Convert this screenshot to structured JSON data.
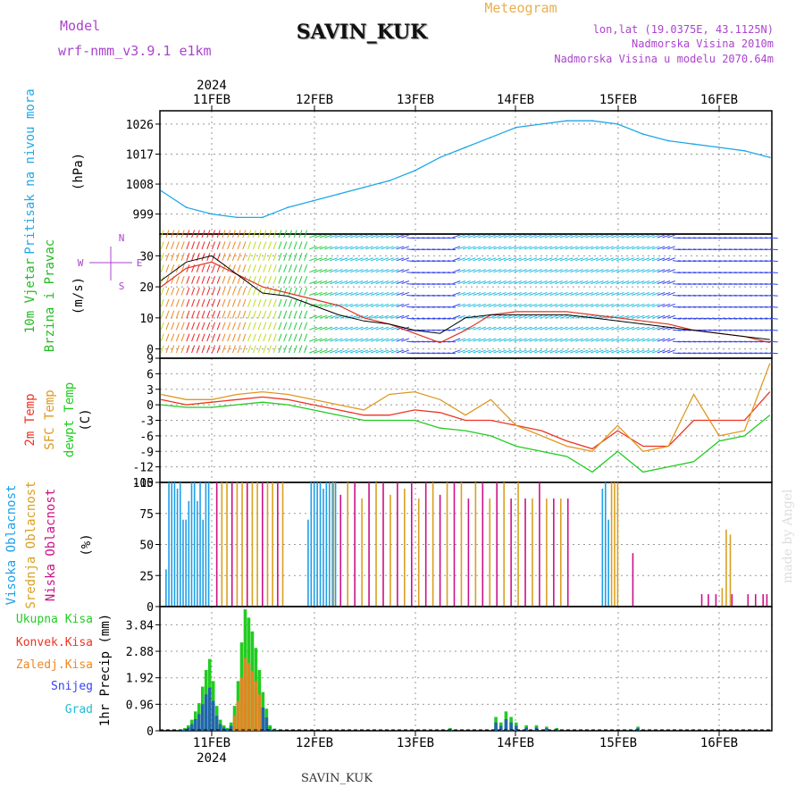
{
  "header": {
    "model_label": "Model",
    "model_name": "wrf-nmm_v3.9.1 e1km",
    "station": "SAVIN_KUK",
    "product": "Meteogram",
    "lonlat": "lon,lat (19.0375E, 43.1125N)",
    "elevation": "Nadmorska Visina 2010m",
    "model_elevation": "Nadmorska Visina u modelu 2070.64m",
    "watermark": "made by Angel",
    "footer_station": "SAVIN_KUK"
  },
  "time_axis": {
    "year": "2024",
    "labels": [
      "11FEB",
      "12FEB",
      "13FEB",
      "14FEB",
      "15FEB",
      "16FEB"
    ]
  },
  "colors": {
    "pressure": "#1fa8e8",
    "mixed_green": "#22bb22",
    "temp2m": "#ee3322",
    "sfc_temp": "#dd9922",
    "dewpt": "#22cc22",
    "high_cloud": "#1f9fe8",
    "mid_cloud": "#d9a020",
    "low_cloud": "#cc1188",
    "title_purple": "#aa44cc",
    "meteogram_orange": "#e8b050"
  },
  "chart_data": [
    {
      "type": "line",
      "name_label": "Pritisak na nivou mora",
      "unit_label": "(hPa)",
      "yticks": [
        "999",
        "1008",
        "1017",
        "1026"
      ],
      "ylim": [
        993,
        1030
      ],
      "x_days": [
        0.0,
        0.25,
        0.5,
        0.75,
        1.0,
        1.25,
        1.5,
        1.75,
        2.0,
        2.25,
        2.5,
        2.75,
        3.0,
        3.25,
        3.5,
        3.75,
        4.0,
        4.25,
        4.5,
        4.75,
        5.0,
        5.25,
        5.5,
        5.75,
        6.0
      ],
      "values": [
        1006,
        1001,
        999,
        998,
        998,
        1001,
        1003,
        1005,
        1007,
        1009,
        1012,
        1016,
        1019,
        1022,
        1025,
        1026,
        1027,
        1027,
        1026,
        1023,
        1021,
        1020,
        1019,
        1018,
        1016
      ]
    },
    {
      "type": "line",
      "name_label": "10m Vjetar",
      "name_label2": "Brzina i Pravac",
      "unit_label": "(m/s)",
      "compass": {
        "n": "N",
        "s": "S",
        "e": "E",
        "w": "W"
      },
      "yticks": [
        "0",
        "10",
        "20",
        "30"
      ],
      "ylim": [
        -3,
        37
      ],
      "x_days": [
        0.0,
        0.25,
        0.5,
        0.75,
        1.0,
        1.25,
        1.5,
        1.75,
        2.0,
        2.25,
        2.5,
        2.75,
        3.0,
        3.25,
        3.5,
        3.75,
        4.0,
        4.25,
        4.5,
        4.75,
        5.0,
        5.25,
        5.5,
        5.75,
        6.0
      ],
      "series": [
        {
          "values": [
            22,
            28,
            30,
            24,
            18,
            17,
            14,
            11,
            9,
            8,
            6,
            5,
            10,
            11,
            11,
            11,
            11,
            10,
            9,
            8,
            7,
            6,
            5,
            4,
            3
          ]
        },
        {
          "values": [
            20,
            26,
            28,
            24,
            20,
            18,
            16,
            14,
            10,
            8,
            5,
            2,
            6,
            11,
            12,
            12,
            12,
            11,
            10,
            9,
            8,
            6,
            5,
            4,
            2
          ]
        }
      ]
    },
    {
      "type": "line",
      "name_labels": [
        "2m Temp",
        "SFC Temp",
        "dewpt Temp"
      ],
      "unit_label": "(C)",
      "yticks": [
        "-15",
        "-12",
        "-9",
        "-6",
        "-3",
        "0",
        "3",
        "6",
        "9"
      ],
      "ylim": [
        -15,
        9
      ],
      "x_days": [
        0.0,
        0.25,
        0.5,
        0.75,
        1.0,
        1.25,
        1.5,
        1.75,
        2.0,
        2.25,
        2.5,
        2.75,
        3.0,
        3.25,
        3.5,
        3.75,
        4.0,
        4.25,
        4.5,
        4.75,
        5.0,
        5.25,
        5.5,
        5.75,
        6.0
      ],
      "series": [
        {
          "values": [
            1,
            0,
            0.5,
            1,
            1.5,
            1,
            0,
            -1,
            -2,
            -2,
            -1,
            -1.5,
            -3,
            -3,
            -4,
            -5,
            -7,
            -8.5,
            -5,
            -8,
            -8,
            -3,
            -3,
            -3,
            2.5
          ]
        },
        {
          "values": [
            2,
            1,
            1,
            2,
            2.5,
            2,
            1,
            0,
            -1,
            2,
            2.5,
            1,
            -2,
            1,
            -4,
            -6,
            -8,
            -9,
            -4,
            -9,
            -8,
            2,
            -6,
            -5,
            8
          ]
        },
        {
          "values": [
            0,
            -0.5,
            -0.5,
            0,
            0.5,
            0,
            -1,
            -2,
            -3,
            -3,
            -3,
            -4.5,
            -5,
            -6,
            -8,
            -9,
            -10,
            -13,
            -9,
            -13,
            -12,
            -11,
            -7,
            -6,
            -2
          ]
        }
      ]
    },
    {
      "type": "bar",
      "name_labels": [
        "Visoka Oblacnost",
        "Srednja Oblacnost",
        "Niska Oblacnost"
      ],
      "unit_label": "(%)",
      "yticks": [
        "0",
        "25",
        "50",
        "75",
        "100"
      ],
      "ylim": [
        0,
        100
      ]
    },
    {
      "type": "bar",
      "name_labels": [
        "Ukupna Kisa",
        "Konvek.Kisa",
        "Zaledj.Kisa",
        "Snijeg",
        "Grad"
      ],
      "unit_label": "1hr Precip (mm)",
      "yticks": [
        "0",
        "0.96",
        "1.92",
        "2.88",
        "3.84"
      ],
      "ylim": [
        0,
        4.5
      ]
    }
  ]
}
